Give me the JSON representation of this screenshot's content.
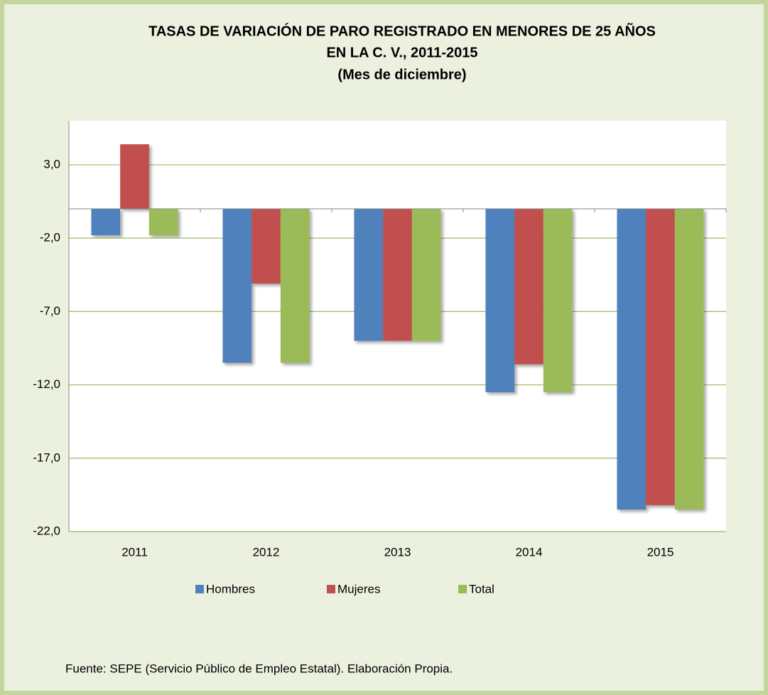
{
  "chart_data": {
    "type": "bar",
    "title": "TASAS DE VARIACIÓN DE PARO REGISTRADO EN MENORES DE 25 AÑOS",
    "subtitle": "EN LA C. V., 2011-2015",
    "subtitle2": "(Mes de diciembre)",
    "categories": [
      "2011",
      "2012",
      "2013",
      "2014",
      "2015"
    ],
    "series": [
      {
        "name": "Hombres",
        "color": "#4f81bd",
        "values": [
          -1.8,
          -10.5,
          -9.0,
          -12.5,
          -20.5
        ]
      },
      {
        "name": "Mujeres",
        "color": "#c0504d",
        "values": [
          4.4,
          -5.1,
          -9.0,
          -10.6,
          -20.2
        ]
      },
      {
        "name": "Total",
        "color": "#9bbb59",
        "values": [
          -1.8,
          -10.5,
          -9.0,
          -12.5,
          -20.5
        ]
      }
    ],
    "ylim": [
      -22,
      6
    ],
    "yticks": [
      {
        "value": 3,
        "label": "3,0"
      },
      {
        "value": -2,
        "label": "-2,0"
      },
      {
        "value": -7,
        "label": "-7,0"
      },
      {
        "value": -12,
        "label": "-12,0"
      },
      {
        "value": -17,
        "label": "-17,0"
      },
      {
        "value": -22,
        "label": "-22,0"
      }
    ],
    "grid": true,
    "legend": "bottom",
    "source": "Fuente: SEPE (Servicio Público de Empleo Estatal). Elaboración Propia."
  }
}
